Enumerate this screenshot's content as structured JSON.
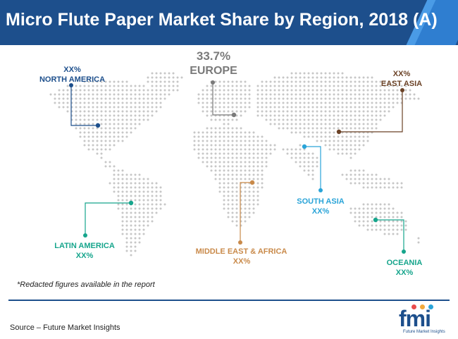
{
  "chart_data": {
    "type": "map",
    "title": "Micro Flute Paper Market Share by Region, 2018 (A)",
    "regions": [
      {
        "name": "NORTH AMERICA",
        "value": "XX%",
        "color": "#1d4f8c"
      },
      {
        "name": "EUROPE",
        "value": "33.7%",
        "color": "#7a7a7a"
      },
      {
        "name": "EAST ASIA",
        "value": "XX%",
        "color": "#6b4226"
      },
      {
        "name": "SOUTH ASIA",
        "value": "XX%",
        "color": "#2aa4d8"
      },
      {
        "name": "LATIN AMERICA",
        "value": "XX%",
        "color": "#16a58c"
      },
      {
        "name": "MIDDLE EAST & AFRICA",
        "value": "XX%",
        "color": "#c98a4a"
      },
      {
        "name": "OCEANIA",
        "value": "XX%",
        "color": "#16a58c"
      }
    ],
    "note": "*Redacted figures available in the report",
    "source": "Source – Future Market Insights"
  },
  "logo": {
    "text": "fmi",
    "tagline": "Future Market Insights"
  }
}
